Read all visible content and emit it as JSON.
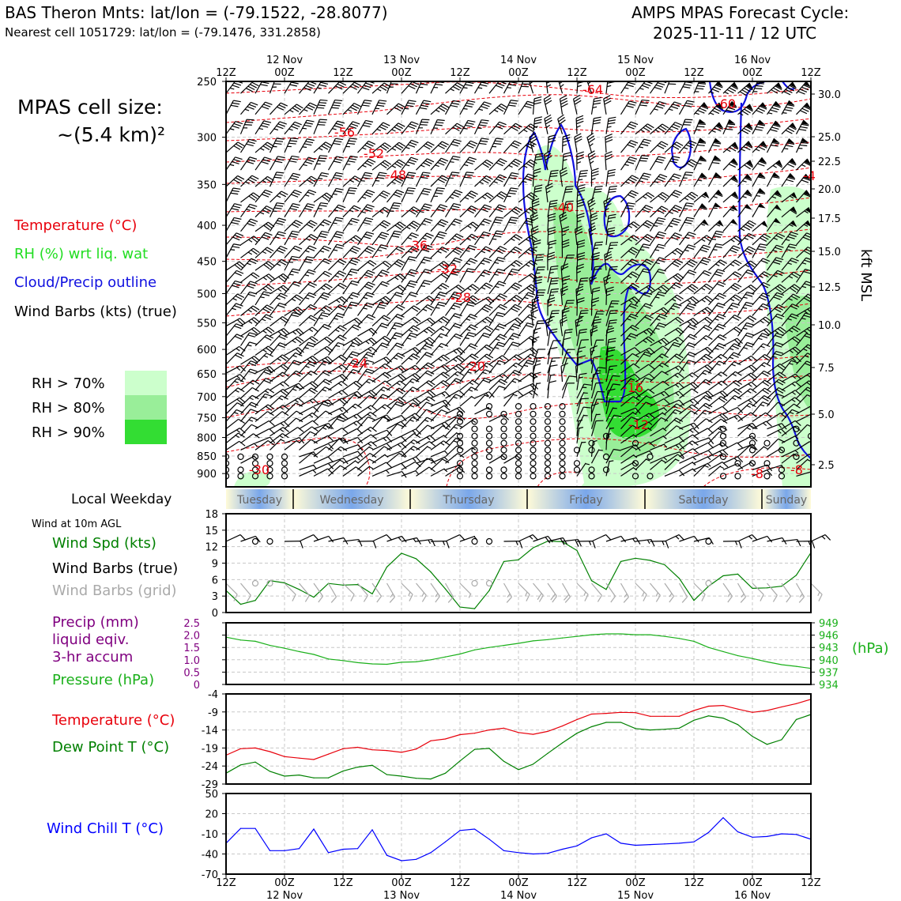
{
  "header": {
    "site_title": "BAS Theron Mnts: lat/lon = (-79.1522, -28.8077)",
    "nearest_cell": "Nearest cell 1051729: lat/lon = (-79.1476, 331.2858)",
    "cycle_title": "AMPS MPAS Forecast Cycle:",
    "cycle_time": "2025-11-11 / 12 UTC"
  },
  "legend": {
    "cell_size_label": "MPAS cell size:",
    "cell_size_value": "~(5.4 km)²",
    "temperature": "Temperature (°C)",
    "rh": "RH (%) wrt liq. wat",
    "cloud": "Cloud/Precip outline",
    "barbs": "Wind Barbs (kts) (true)",
    "rh70": "RH > 70%",
    "rh80": "RH > 80%",
    "rh90": "RH > 90%",
    "kft_label": "kft MSL"
  },
  "colors": {
    "temperature": "#e8000b",
    "rh": "#22dd22",
    "cloud": "#1010e0",
    "rh70": "#ccffcc",
    "rh80": "#99ee99",
    "rh90": "#33dd33",
    "pressure": "#1ab01a",
    "precip": "#800080",
    "dewpoint": "#008000",
    "windchill": "#0000ff",
    "grid_barb": "#aaaaaa"
  },
  "time_axis": {
    "top_dates": [
      "12 Nov",
      "13 Nov",
      "14 Nov",
      "15 Nov",
      "16 Nov"
    ],
    "ticks": [
      "12Z",
      "00Z",
      "12Z",
      "00Z",
      "12Z",
      "00Z",
      "12Z",
      "00Z",
      "12Z",
      "00Z",
      "12Z"
    ],
    "bottom_dates": [
      "12 Nov",
      "13 Nov",
      "14 Nov",
      "15 Nov",
      "16 Nov"
    ]
  },
  "weekday": {
    "label": "Local Weekday",
    "days": [
      "Tuesday",
      "Wednesday",
      "Thursday",
      "Friday",
      "Saturday",
      "Sunday"
    ]
  },
  "panels": {
    "wind_title": "Wind at 10m AGL",
    "wind_spd": "Wind Spd (kts)",
    "wind_barbs_true": "Wind Barbs (true)",
    "wind_barbs_grid": "Wind Barbs (grid)",
    "precip_1": "Precip (mm)",
    "precip_2": "liquid eqiv.",
    "precip_3": "3-hr accum",
    "pressure": "Pressure (hPa)",
    "pressure_unit": "(hPa)",
    "temperature": "Temperature (°C)",
    "dewpoint": "Dew Point T (°C)",
    "windchill": "Wind Chill T (°C)"
  },
  "chart_data": [
    {
      "type": "heatmap",
      "title": "Time–height cross section",
      "y_pressure_ticks": [
        "250",
        "300",
        "350",
        "400",
        "450",
        "500",
        "550",
        "600",
        "650",
        "700",
        "750",
        "800",
        "850",
        "900"
      ],
      "y_kft_ticks": [
        "30.0",
        "25.0",
        "22.5",
        "20.0",
        "17.5",
        "15.0",
        "12.5",
        "10.0",
        "7.5",
        "5.0",
        "2.5"
      ],
      "temperature_contour_labels": [
        "-64",
        "-60",
        "-56",
        "-52",
        "-48",
        "-40",
        "-36",
        "-32",
        "-28",
        "-24",
        "-20",
        "-16",
        "-12",
        "-8",
        "-8",
        "-4",
        "-30"
      ]
    },
    {
      "type": "line",
      "title": "Wind Spd (kts)",
      "x_hours": [
        0,
        3,
        6,
        9,
        12,
        15,
        18,
        21,
        24,
        27,
        30,
        33,
        36,
        39,
        42,
        45,
        48,
        51,
        54,
        57,
        60,
        63,
        66,
        69,
        72,
        75,
        78,
        81,
        84,
        87,
        90,
        93,
        96,
        99,
        102,
        105,
        108,
        111,
        114,
        117,
        120
      ],
      "values": [
        4,
        1.5,
        2.2,
        5.8,
        5.4,
        4.2,
        2.8,
        5.3,
        5.0,
        5.1,
        3.4,
        8.3,
        10.8,
        9.8,
        7.4,
        4.3,
        1.0,
        0.7,
        4.0,
        9.3,
        9.6,
        11.8,
        13.0,
        12.9,
        11.3,
        5.8,
        4.2,
        9.3,
        9.9,
        9.5,
        8.7,
        6.2,
        2.2,
        4.8,
        6.7,
        7.0,
        4.4,
        4.5,
        4.8,
        6.8,
        10.9
      ],
      "ylim": [
        0,
        18
      ],
      "yticks": [
        "0",
        "3",
        "6",
        "9",
        "12",
        "15",
        "18"
      ]
    },
    {
      "type": "line",
      "title": "Pressure (hPa)",
      "x_hours": [
        0,
        3,
        6,
        9,
        12,
        15,
        18,
        21,
        24,
        27,
        30,
        33,
        36,
        39,
        42,
        45,
        48,
        51,
        54,
        57,
        60,
        63,
        66,
        69,
        72,
        75,
        78,
        81,
        84,
        87,
        90,
        93,
        96,
        99,
        102,
        105,
        108,
        111,
        114,
        117,
        120
      ],
      "values": [
        945.5,
        944.8,
        944.5,
        943.5,
        942.8,
        942.0,
        941.3,
        940.2,
        939.8,
        939.3,
        939.0,
        938.9,
        939.4,
        939.5,
        940.0,
        940.7,
        941.4,
        942.4,
        943.0,
        943.5,
        944.0,
        944.6,
        944.9,
        945.3,
        945.7,
        946.1,
        946.3,
        946.3,
        946.1,
        946.1,
        945.7,
        945.2,
        944.5,
        943.0,
        942.0,
        941.0,
        940.3,
        939.5,
        938.8,
        938.4,
        937.9
      ],
      "ylim": [
        934,
        949
      ],
      "yticks": [
        "934",
        "937",
        "940",
        "943",
        "946",
        "949"
      ],
      "precip_yticks": [
        "0",
        "0.5",
        "1.0",
        "1.5",
        "2.0",
        "2.5"
      ]
    },
    {
      "type": "line",
      "title": "Temperature / Dew Point (°C)",
      "x_hours": [
        0,
        3,
        6,
        9,
        12,
        15,
        18,
        21,
        24,
        27,
        30,
        33,
        36,
        39,
        42,
        45,
        48,
        51,
        54,
        57,
        60,
        63,
        66,
        69,
        72,
        75,
        78,
        81,
        84,
        87,
        90,
        93,
        96,
        99,
        102,
        105,
        108,
        111,
        114,
        117,
        120
      ],
      "series": [
        {
          "name": "Temperature",
          "values": [
            -21,
            -19.2,
            -19,
            -20,
            -21.4,
            -21.8,
            -22.2,
            -20.7,
            -19.2,
            -18.8,
            -19.5,
            -19.7,
            -20.2,
            -19.3,
            -17.0,
            -16.5,
            -15.3,
            -14.9,
            -14.0,
            -13.5,
            -14.7,
            -15.2,
            -14.4,
            -12.9,
            -11.1,
            -9.6,
            -9.4,
            -9.1,
            -9.2,
            -10.2,
            -10.2,
            -10.2,
            -8.6,
            -7.4,
            -7.2,
            -8.2,
            -9.1,
            -8.6,
            -7.6,
            -6.7,
            -5.5
          ]
        },
        {
          "name": "Dew Point",
          "values": [
            -26,
            -23.7,
            -22.9,
            -25.5,
            -26.8,
            -26.5,
            -27.3,
            -27.3,
            -25.4,
            -24.3,
            -23.8,
            -26.4,
            -26.8,
            -27.4,
            -27.6,
            -26.0,
            -22.6,
            -19.4,
            -19.1,
            -22.7,
            -25.0,
            -23.5,
            -20.5,
            -17.6,
            -14.9,
            -13.1,
            -11.9,
            -11.9,
            -13.6,
            -14.0,
            -13.8,
            -13.5,
            -11.3,
            -10.1,
            -10.7,
            -12.5,
            -15.8,
            -18.0,
            -16.7,
            -11.1,
            -9.7
          ]
        }
      ],
      "ylim": [
        -29,
        -4
      ],
      "yticks": [
        "-29",
        "-24",
        "-19",
        "-14",
        "-9",
        "-4"
      ]
    },
    {
      "type": "line",
      "title": "Wind Chill T (°C)",
      "x_hours": [
        0,
        3,
        6,
        9,
        12,
        15,
        18,
        21,
        24,
        27,
        30,
        33,
        36,
        39,
        42,
        45,
        48,
        51,
        54,
        57,
        60,
        63,
        66,
        69,
        72,
        75,
        78,
        81,
        84,
        87,
        90,
        93,
        96,
        99,
        102,
        105,
        108,
        111,
        114,
        117,
        120
      ],
      "values": [
        -24,
        -2,
        -2,
        -35,
        -35,
        -32,
        -3,
        -38,
        -33,
        -32,
        -4,
        -42,
        -50,
        -48,
        -38,
        -22,
        -5,
        -3,
        -18,
        -35,
        -38,
        -40,
        -39,
        -33,
        -28,
        -16,
        -10,
        -24,
        -27,
        -26,
        -25,
        -24,
        -22,
        -8,
        14,
        -7,
        -15,
        -14,
        -10,
        -11,
        -18
      ],
      "ylim": [
        -70,
        50
      ],
      "yticks": [
        "-70",
        "-40",
        "-10",
        "20",
        "50"
      ]
    }
  ]
}
